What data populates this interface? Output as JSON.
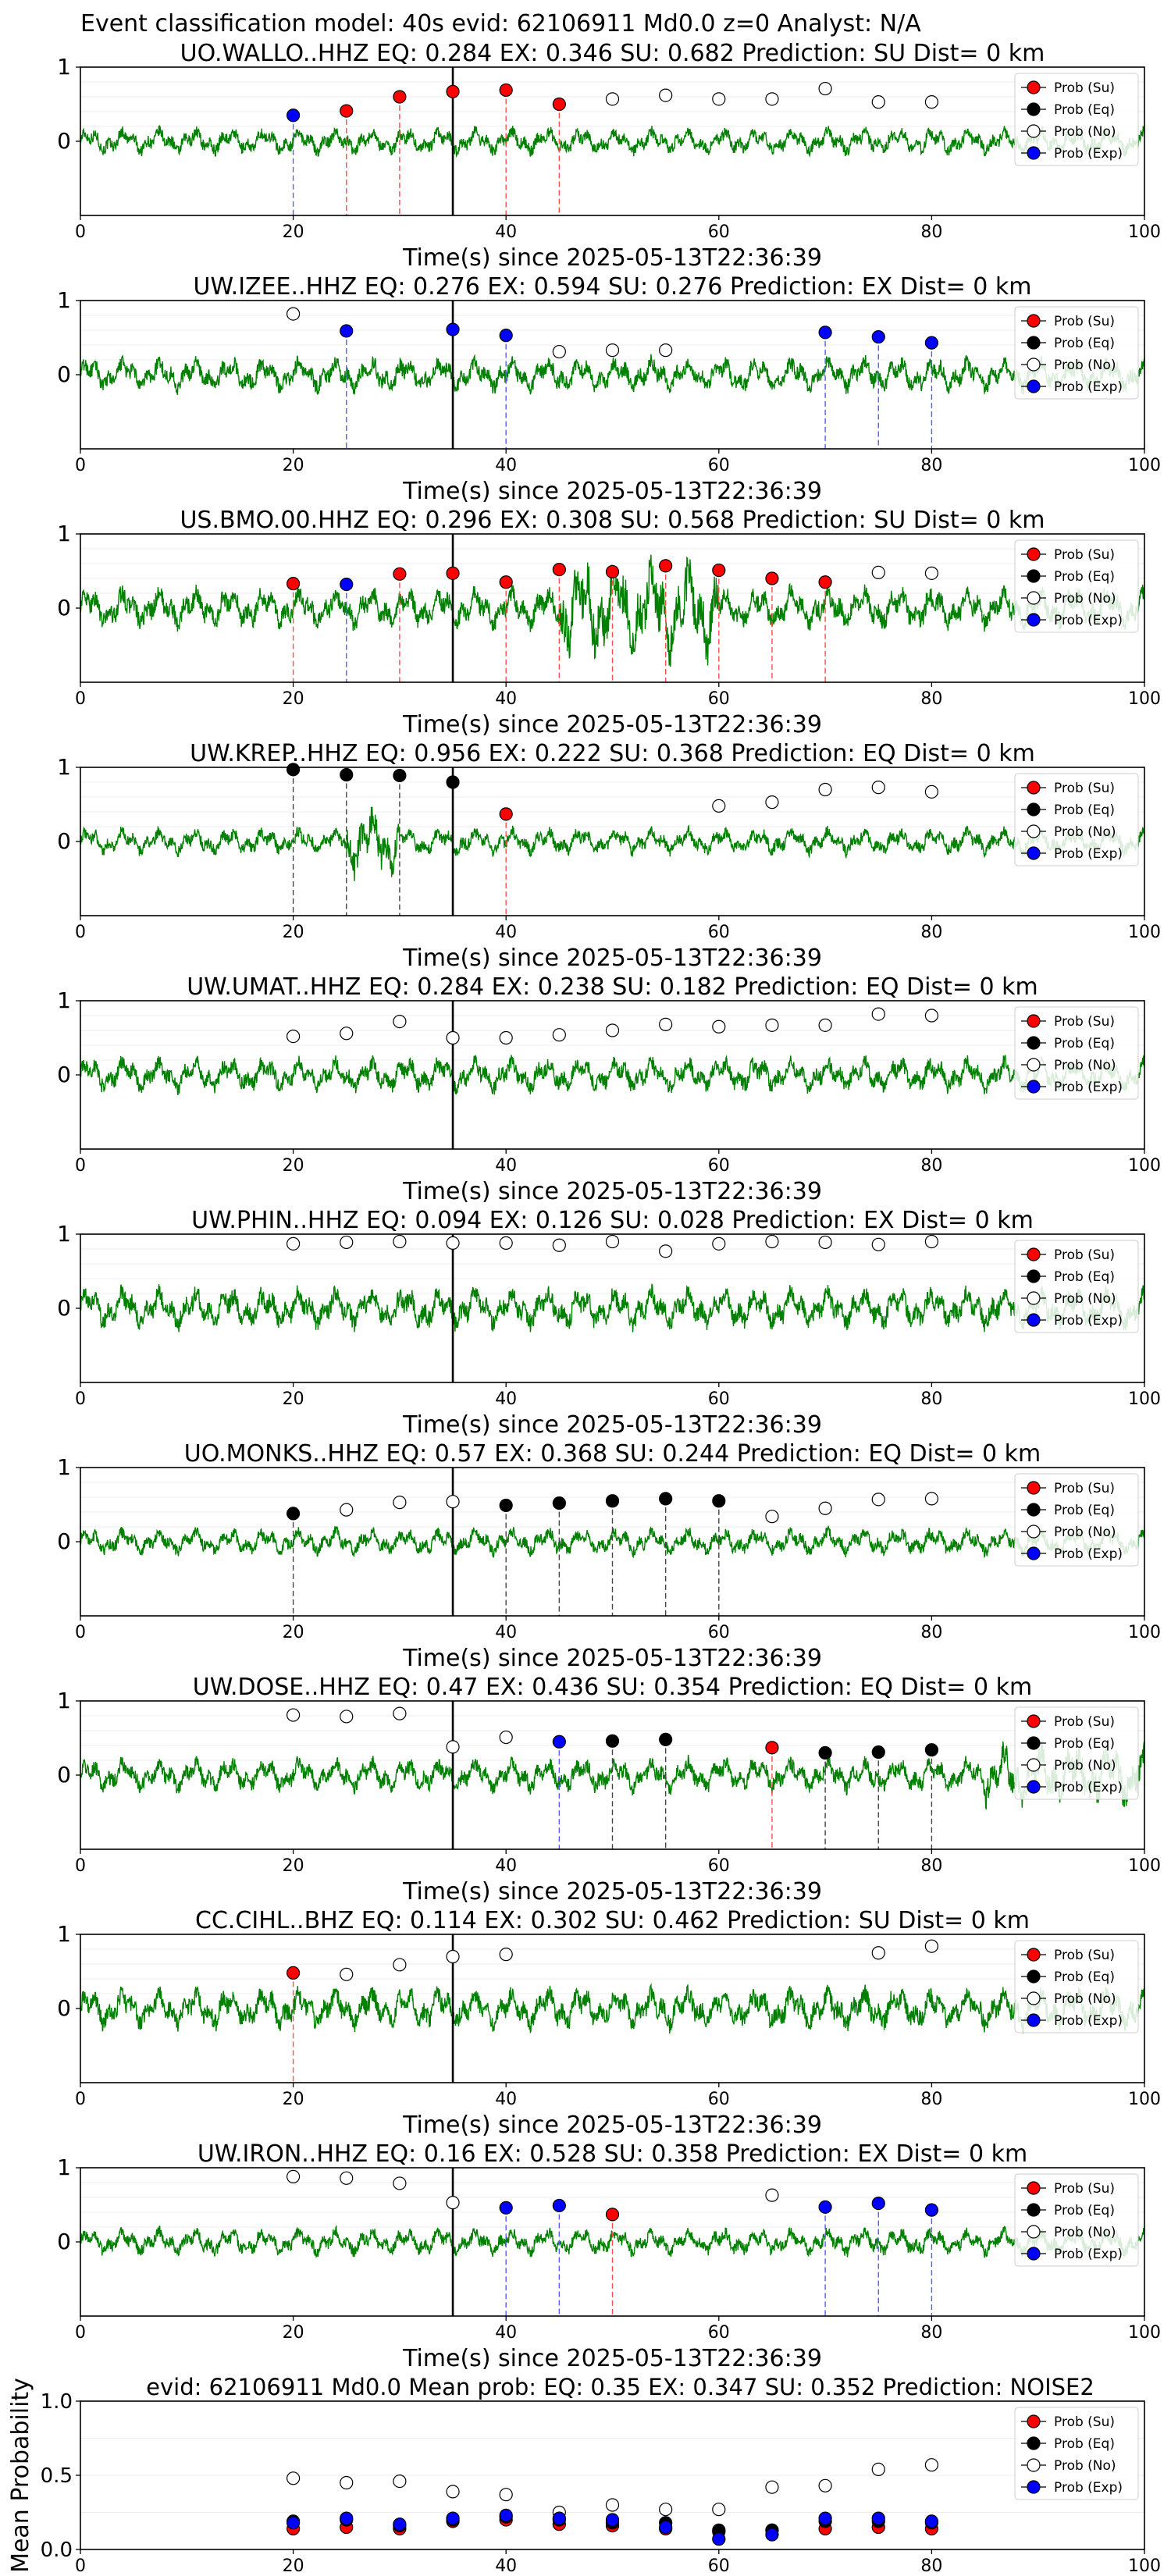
{
  "figure_title": "Event classification model: 40s evid: 62106911 Md0.0 z=0 Analyst: N/A",
  "xlabel": "Time(s) since 2025-05-13T22:36:39",
  "mean_ylabel": "Mean Probability",
  "legend": [
    "Prob (Su)",
    "Prob (Eq)",
    "Prob (No)",
    "Prob (Exp)"
  ],
  "colors": {
    "su": "#ff0000",
    "eq": "#000000",
    "no": "#ffffff",
    "exp": "#0000ff",
    "trace": "#008000",
    "arrival": "#000000"
  },
  "chart_data": [
    {
      "type": "line",
      "title": "UO.WALLO..HHZ   EQ: 0.284  EX: 0.346  SU: 0.682   Prediction: SU    Dist= 0 km",
      "xlim": [
        0,
        100
      ],
      "ylim": [
        -1,
        1
      ],
      "yticks": [
        "1",
        "0"
      ],
      "xticks": [
        "0",
        "20",
        "40",
        "60",
        "80",
        "100"
      ],
      "arrival": 35,
      "points": [
        {
          "t": 20,
          "p": 0.35,
          "c": "exp"
        },
        {
          "t": 25,
          "p": 0.41,
          "c": "su"
        },
        {
          "t": 30,
          "p": 0.6,
          "c": "su"
        },
        {
          "t": 35,
          "p": 0.67,
          "c": "su"
        },
        {
          "t": 40,
          "p": 0.69,
          "c": "su"
        },
        {
          "t": 45,
          "p": 0.5,
          "c": "su"
        },
        {
          "t": 50,
          "p": 0.57,
          "c": "no"
        },
        {
          "t": 55,
          "p": 0.62,
          "c": "no"
        },
        {
          "t": 60,
          "p": 0.57,
          "c": "no"
        },
        {
          "t": 65,
          "p": 0.57,
          "c": "no"
        },
        {
          "t": 70,
          "p": 0.71,
          "c": "no"
        },
        {
          "t": 75,
          "p": 0.53,
          "c": "no"
        },
        {
          "t": 80,
          "p": 0.53,
          "c": "no"
        }
      ]
    },
    {
      "type": "line",
      "title": "UW.IZEE..HHZ   EQ: 0.276  EX: 0.594  SU: 0.276   Prediction: EX    Dist= 0 km",
      "xlim": [
        0,
        100
      ],
      "ylim": [
        -1,
        1
      ],
      "yticks": [
        "1",
        "0"
      ],
      "xticks": [
        "0",
        "20",
        "40",
        "60",
        "80",
        "100"
      ],
      "arrival": 35,
      "points": [
        {
          "t": 20,
          "p": 0.82,
          "c": "no"
        },
        {
          "t": 25,
          "p": 0.59,
          "c": "exp"
        },
        {
          "t": 35,
          "p": 0.61,
          "c": "exp"
        },
        {
          "t": 40,
          "p": 0.53,
          "c": "exp"
        },
        {
          "t": 45,
          "p": 0.31,
          "c": "no"
        },
        {
          "t": 50,
          "p": 0.33,
          "c": "no"
        },
        {
          "t": 55,
          "p": 0.33,
          "c": "no"
        },
        {
          "t": 70,
          "p": 0.57,
          "c": "exp"
        },
        {
          "t": 75,
          "p": 0.51,
          "c": "exp"
        },
        {
          "t": 80,
          "p": 0.43,
          "c": "exp"
        }
      ]
    },
    {
      "type": "line",
      "title": "US.BMO.00.HHZ   EQ: 0.296  EX: 0.308  SU: 0.568   Prediction: SU    Dist= 0 km",
      "xlim": [
        0,
        100
      ],
      "ylim": [
        -1,
        1
      ],
      "yticks": [
        "1",
        "0"
      ],
      "xticks": [
        "0",
        "20",
        "40",
        "60",
        "80",
        "100"
      ],
      "arrival": 35,
      "points": [
        {
          "t": 20,
          "p": 0.33,
          "c": "su"
        },
        {
          "t": 25,
          "p": 0.32,
          "c": "exp"
        },
        {
          "t": 30,
          "p": 0.46,
          "c": "su"
        },
        {
          "t": 35,
          "p": 0.47,
          "c": "su"
        },
        {
          "t": 40,
          "p": 0.35,
          "c": "su"
        },
        {
          "t": 45,
          "p": 0.52,
          "c": "su"
        },
        {
          "t": 50,
          "p": 0.49,
          "c": "su"
        },
        {
          "t": 55,
          "p": 0.57,
          "c": "su"
        },
        {
          "t": 60,
          "p": 0.51,
          "c": "su"
        },
        {
          "t": 65,
          "p": 0.4,
          "c": "su"
        },
        {
          "t": 70,
          "p": 0.35,
          "c": "su"
        },
        {
          "t": 75,
          "p": 0.48,
          "c": "no"
        },
        {
          "t": 80,
          "p": 0.47,
          "c": "no"
        }
      ]
    },
    {
      "type": "line",
      "title": "UW.KREP..HHZ   EQ: 0.956  EX: 0.222  SU: 0.368   Prediction: EQ    Dist= 0 km",
      "xlim": [
        0,
        100
      ],
      "ylim": [
        -1,
        1
      ],
      "yticks": [
        "1",
        "0"
      ],
      "xticks": [
        "0",
        "20",
        "40",
        "60",
        "80",
        "100"
      ],
      "arrival": 35,
      "points": [
        {
          "t": 20,
          "p": 0.97,
          "c": "eq"
        },
        {
          "t": 25,
          "p": 0.9,
          "c": "eq"
        },
        {
          "t": 30,
          "p": 0.89,
          "c": "eq"
        },
        {
          "t": 35,
          "p": 0.8,
          "c": "eq"
        },
        {
          "t": 40,
          "p": 0.37,
          "c": "su"
        },
        {
          "t": 60,
          "p": 0.48,
          "c": "no"
        },
        {
          "t": 65,
          "p": 0.53,
          "c": "no"
        },
        {
          "t": 70,
          "p": 0.7,
          "c": "no"
        },
        {
          "t": 75,
          "p": 0.73,
          "c": "no"
        },
        {
          "t": 80,
          "p": 0.67,
          "c": "no"
        }
      ]
    },
    {
      "type": "line",
      "title": "UW.UMAT..HHZ   EQ: 0.284  EX: 0.238  SU: 0.182   Prediction: EQ    Dist= 0 km",
      "xlim": [
        0,
        100
      ],
      "ylim": [
        -1,
        1
      ],
      "yticks": [
        "1",
        "0"
      ],
      "xticks": [
        "0",
        "20",
        "40",
        "60",
        "80",
        "100"
      ],
      "arrival": 35,
      "points": [
        {
          "t": 20,
          "p": 0.52,
          "c": "no"
        },
        {
          "t": 25,
          "p": 0.56,
          "c": "no"
        },
        {
          "t": 30,
          "p": 0.72,
          "c": "no"
        },
        {
          "t": 35,
          "p": 0.5,
          "c": "no"
        },
        {
          "t": 40,
          "p": 0.5,
          "c": "no"
        },
        {
          "t": 45,
          "p": 0.54,
          "c": "no"
        },
        {
          "t": 50,
          "p": 0.6,
          "c": "no"
        },
        {
          "t": 55,
          "p": 0.68,
          "c": "no"
        },
        {
          "t": 60,
          "p": 0.65,
          "c": "no"
        },
        {
          "t": 65,
          "p": 0.67,
          "c": "no"
        },
        {
          "t": 70,
          "p": 0.67,
          "c": "no"
        },
        {
          "t": 75,
          "p": 0.82,
          "c": "no"
        },
        {
          "t": 80,
          "p": 0.8,
          "c": "no"
        }
      ]
    },
    {
      "type": "line",
      "title": "UW.PHIN..HHZ   EQ: 0.094  EX: 0.126  SU: 0.028   Prediction: EX    Dist= 0 km",
      "xlim": [
        0,
        100
      ],
      "ylim": [
        -1,
        1
      ],
      "yticks": [
        "1",
        "0"
      ],
      "xticks": [
        "0",
        "20",
        "40",
        "60",
        "80",
        "100"
      ],
      "arrival": 35,
      "points": [
        {
          "t": 20,
          "p": 0.87,
          "c": "no"
        },
        {
          "t": 25,
          "p": 0.89,
          "c": "no"
        },
        {
          "t": 30,
          "p": 0.9,
          "c": "no"
        },
        {
          "t": 35,
          "p": 0.88,
          "c": "no"
        },
        {
          "t": 40,
          "p": 0.88,
          "c": "no"
        },
        {
          "t": 45,
          "p": 0.85,
          "c": "no"
        },
        {
          "t": 50,
          "p": 0.9,
          "c": "no"
        },
        {
          "t": 55,
          "p": 0.77,
          "c": "no"
        },
        {
          "t": 60,
          "p": 0.87,
          "c": "no"
        },
        {
          "t": 65,
          "p": 0.9,
          "c": "no"
        },
        {
          "t": 70,
          "p": 0.89,
          "c": "no"
        },
        {
          "t": 75,
          "p": 0.86,
          "c": "no"
        },
        {
          "t": 80,
          "p": 0.9,
          "c": "no"
        }
      ]
    },
    {
      "type": "line",
      "title": "UO.MONKS..HHZ   EQ: 0.57  EX: 0.368  SU: 0.244   Prediction: EQ    Dist= 0 km",
      "xlim": [
        0,
        100
      ],
      "ylim": [
        -1,
        1
      ],
      "yticks": [
        "1",
        "0"
      ],
      "xticks": [
        "0",
        "20",
        "40",
        "60",
        "80",
        "100"
      ],
      "arrival": 35,
      "points": [
        {
          "t": 20,
          "p": 0.38,
          "c": "eq"
        },
        {
          "t": 25,
          "p": 0.43,
          "c": "no"
        },
        {
          "t": 30,
          "p": 0.53,
          "c": "no"
        },
        {
          "t": 35,
          "p": 0.54,
          "c": "no"
        },
        {
          "t": 40,
          "p": 0.49,
          "c": "eq"
        },
        {
          "t": 45,
          "p": 0.52,
          "c": "eq"
        },
        {
          "t": 50,
          "p": 0.55,
          "c": "eq"
        },
        {
          "t": 55,
          "p": 0.58,
          "c": "eq"
        },
        {
          "t": 60,
          "p": 0.55,
          "c": "eq"
        },
        {
          "t": 65,
          "p": 0.34,
          "c": "no"
        },
        {
          "t": 70,
          "p": 0.45,
          "c": "no"
        },
        {
          "t": 75,
          "p": 0.57,
          "c": "no"
        },
        {
          "t": 80,
          "p": 0.58,
          "c": "no"
        }
      ]
    },
    {
      "type": "line",
      "title": "UW.DOSE..HHZ   EQ: 0.47  EX: 0.436  SU: 0.354   Prediction: EQ    Dist= 0 km",
      "xlim": [
        0,
        100
      ],
      "ylim": [
        -1,
        1
      ],
      "yticks": [
        "1",
        "0"
      ],
      "xticks": [
        "0",
        "20",
        "40",
        "60",
        "80",
        "100"
      ],
      "arrival": 35,
      "points": [
        {
          "t": 20,
          "p": 0.81,
          "c": "no"
        },
        {
          "t": 25,
          "p": 0.79,
          "c": "no"
        },
        {
          "t": 30,
          "p": 0.83,
          "c": "no"
        },
        {
          "t": 35,
          "p": 0.38,
          "c": "no"
        },
        {
          "t": 40,
          "p": 0.51,
          "c": "no"
        },
        {
          "t": 45,
          "p": 0.45,
          "c": "exp"
        },
        {
          "t": 50,
          "p": 0.46,
          "c": "eq"
        },
        {
          "t": 55,
          "p": 0.48,
          "c": "eq"
        },
        {
          "t": 65,
          "p": 0.37,
          "c": "su"
        },
        {
          "t": 70,
          "p": 0.3,
          "c": "eq"
        },
        {
          "t": 75,
          "p": 0.31,
          "c": "eq"
        },
        {
          "t": 80,
          "p": 0.34,
          "c": "eq"
        }
      ]
    },
    {
      "type": "line",
      "title": "CC.CIHL..BHZ   EQ: 0.114  EX: 0.302  SU: 0.462   Prediction: SU    Dist= 0 km",
      "xlim": [
        0,
        100
      ],
      "ylim": [
        -1,
        1
      ],
      "yticks": [
        "1",
        "0"
      ],
      "xticks": [
        "0",
        "20",
        "40",
        "60",
        "80",
        "100"
      ],
      "arrival": 35,
      "points": [
        {
          "t": 20,
          "p": 0.48,
          "c": "su"
        },
        {
          "t": 25,
          "p": 0.46,
          "c": "no"
        },
        {
          "t": 30,
          "p": 0.59,
          "c": "no"
        },
        {
          "t": 35,
          "p": 0.7,
          "c": "no"
        },
        {
          "t": 40,
          "p": 0.73,
          "c": "no"
        },
        {
          "t": 75,
          "p": 0.75,
          "c": "no"
        },
        {
          "t": 80,
          "p": 0.84,
          "c": "no"
        }
      ]
    },
    {
      "type": "line",
      "title": "UW.IRON..HHZ   EQ: 0.16  EX: 0.528  SU: 0.358   Prediction: EX    Dist= 0 km",
      "xlim": [
        0,
        100
      ],
      "ylim": [
        -1,
        1
      ],
      "yticks": [
        "1",
        "0"
      ],
      "xticks": [
        "0",
        "20",
        "40",
        "60",
        "80",
        "100"
      ],
      "arrival": 35,
      "points": [
        {
          "t": 20,
          "p": 0.88,
          "c": "no"
        },
        {
          "t": 25,
          "p": 0.86,
          "c": "no"
        },
        {
          "t": 30,
          "p": 0.79,
          "c": "no"
        },
        {
          "t": 35,
          "p": 0.53,
          "c": "no"
        },
        {
          "t": 40,
          "p": 0.46,
          "c": "exp"
        },
        {
          "t": 45,
          "p": 0.49,
          "c": "exp"
        },
        {
          "t": 50,
          "p": 0.37,
          "c": "su"
        },
        {
          "t": 65,
          "p": 0.63,
          "c": "no"
        },
        {
          "t": 70,
          "p": 0.47,
          "c": "exp"
        },
        {
          "t": 75,
          "p": 0.52,
          "c": "exp"
        },
        {
          "t": 80,
          "p": 0.43,
          "c": "exp"
        }
      ]
    },
    {
      "type": "scatter",
      "title": "evid: 62106911  Md0.0   Mean prob:   EQ: 0.35  EX: 0.347  SU: 0.352   Prediction: NOISE2",
      "xlim": [
        0,
        100
      ],
      "ylim": [
        0,
        1
      ],
      "yticks": [
        "0.0",
        "0.5",
        "1.0"
      ],
      "xticks": [
        "0",
        "20",
        "40",
        "60",
        "80",
        "100"
      ],
      "x": [
        20,
        25,
        30,
        35,
        40,
        45,
        50,
        55,
        60,
        65,
        70,
        75,
        80
      ],
      "series": [
        {
          "name": "Prob (Su)",
          "c": "su",
          "values": [
            0.14,
            0.15,
            0.14,
            0.19,
            0.2,
            0.17,
            0.16,
            0.14,
            0.12,
            0.13,
            0.14,
            0.15,
            0.14
          ]
        },
        {
          "name": "Prob (Eq)",
          "c": "eq",
          "values": [
            0.19,
            0.2,
            0.16,
            0.2,
            0.22,
            0.2,
            0.18,
            0.18,
            0.13,
            0.13,
            0.19,
            0.19,
            0.18
          ]
        },
        {
          "name": "Prob (No)",
          "c": "no",
          "values": [
            0.48,
            0.45,
            0.46,
            0.39,
            0.37,
            0.25,
            0.3,
            0.27,
            0.27,
            0.42,
            0.43,
            0.54,
            0.57
          ]
        },
        {
          "name": "Prob (Exp)",
          "c": "exp",
          "values": [
            0.18,
            0.21,
            0.17,
            0.21,
            0.23,
            0.21,
            0.2,
            0.15,
            0.07,
            0.1,
            0.21,
            0.21,
            0.19
          ]
        }
      ]
    }
  ]
}
